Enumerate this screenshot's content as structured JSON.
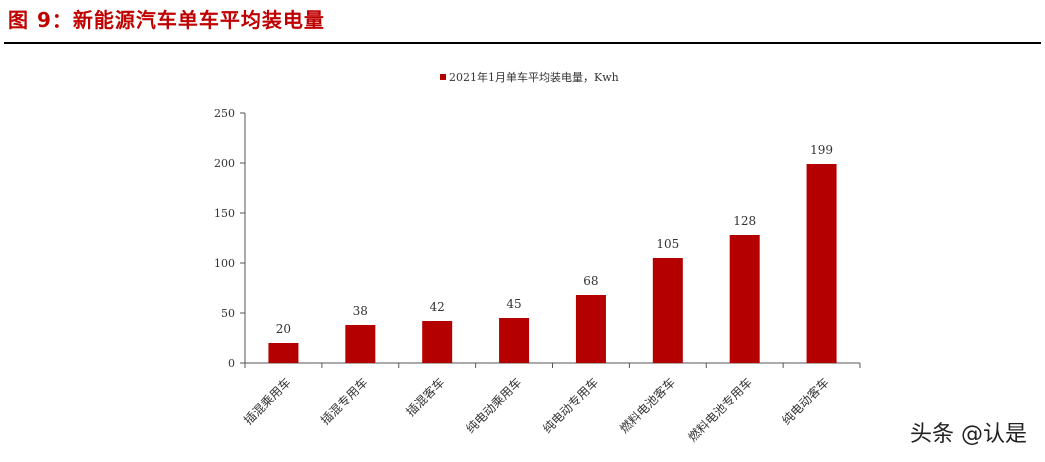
{
  "figure": {
    "title": "图 9：新能源汽车单车平均装电量",
    "watermark": "头条 @认是"
  },
  "chart_data": {
    "type": "bar",
    "title": "",
    "legend": "2021年1月单车平均装电量，Kwh",
    "legend_position": "top-center",
    "categories": [
      "插混乘用车",
      "插混专用车",
      "插混客车",
      "纯电动乘用车",
      "纯电动专用车",
      "燃料电池客车",
      "燃料电池专用车",
      "纯电动客车"
    ],
    "series": [
      {
        "name": "2021年1月单车平均装电量，Kwh",
        "values": [
          20,
          38,
          42,
          45,
          68,
          105,
          128,
          199
        ]
      }
    ],
    "value_labels": [
      "20",
      "38",
      "42",
      "45",
      "68",
      "105",
      "128",
      "199"
    ],
    "y_ticks": [
      "0",
      "50",
      "100",
      "150",
      "200",
      "250"
    ],
    "ylim": [
      0,
      250
    ],
    "grid": false,
    "bar_color": "#b50000"
  }
}
